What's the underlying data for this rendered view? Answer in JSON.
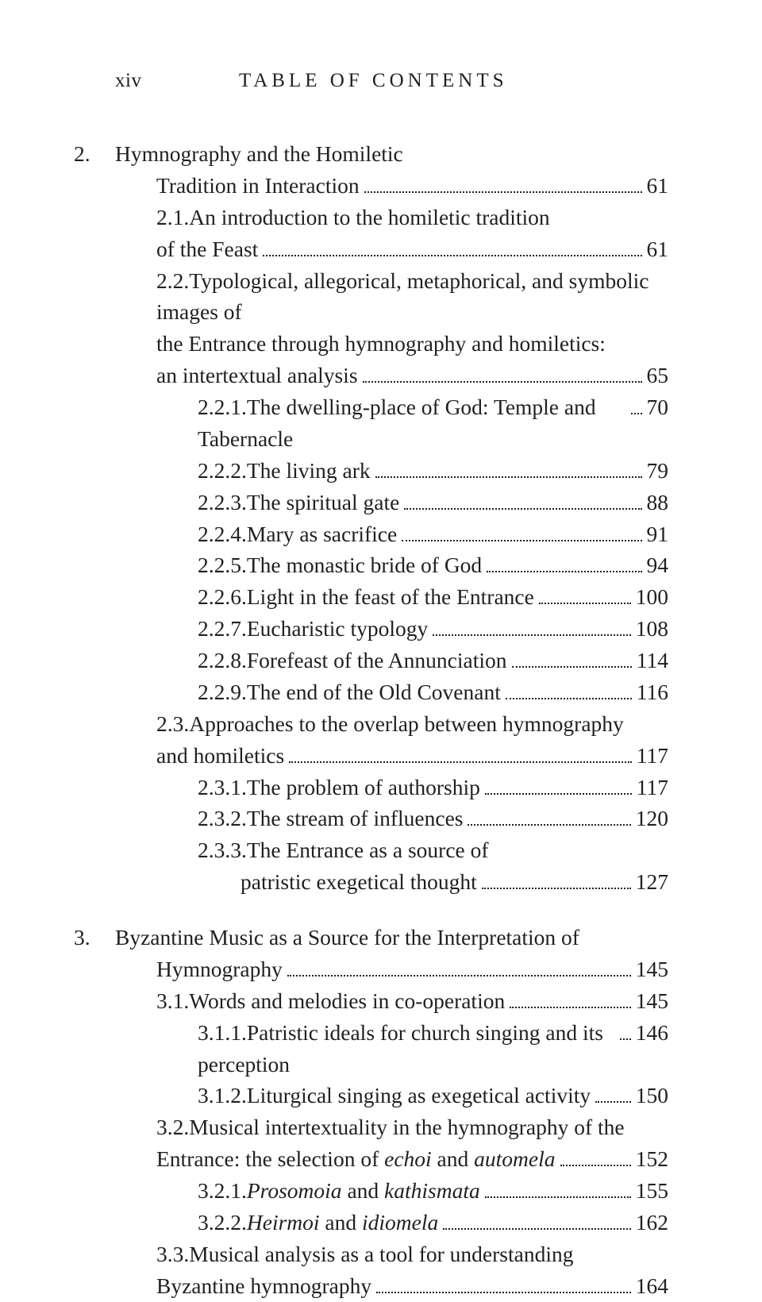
{
  "header": {
    "page_number": "xiv",
    "running_title": "TABLE OF CONTENTS"
  },
  "entries": [
    {
      "level": 1,
      "num": "2.",
      "text": "Hymnography and the Homiletic",
      "wrap": "Tradition in Interaction",
      "page": "61"
    },
    {
      "level": 2,
      "num": "2.1.",
      "text": "An introduction to the homiletic tradition",
      "wrap": "of the Feast",
      "page": "61"
    },
    {
      "level": 2,
      "num": "2.2.",
      "text": "Typological, allegorical, metaphorical, and symbolic images of",
      "wrap": "the Entrance through hymnography and homiletics:",
      "wrap2": "an intertextual analysis",
      "page": "65"
    },
    {
      "level": 3,
      "num": "2.2.1.",
      "text": "The dwelling-place of God: Temple and Tabernacle",
      "page": "70"
    },
    {
      "level": 3,
      "num": "2.2.2.",
      "text": "The living ark",
      "page": "79"
    },
    {
      "level": 3,
      "num": "2.2.3.",
      "text": "The spiritual gate",
      "page": "88"
    },
    {
      "level": 3,
      "num": "2.2.4.",
      "text": "Mary as sacrifice",
      "page": "91"
    },
    {
      "level": 3,
      "num": "2.2.5.",
      "text": "The monastic bride of God",
      "page": "94"
    },
    {
      "level": 3,
      "num": "2.2.6.",
      "text": "Light in the feast of the Entrance",
      "page": "100"
    },
    {
      "level": 3,
      "num": "2.2.7.",
      "text": "Eucharistic typology",
      "page": "108"
    },
    {
      "level": 3,
      "num": "2.2.8.",
      "text": "Forefeast of the Annunciation",
      "page": "114"
    },
    {
      "level": 3,
      "num": "2.2.9.",
      "text": "The end of the Old Covenant",
      "page": "116"
    },
    {
      "level": 2,
      "num": "2.3.",
      "text": "Approaches to the overlap between hymnography",
      "wrap": "and homiletics",
      "page": "117"
    },
    {
      "level": 3,
      "num": "2.3.1.",
      "text": "The problem of authorship",
      "page": "117"
    },
    {
      "level": 3,
      "num": "2.3.2.",
      "text": "The stream of influences",
      "page": "120"
    },
    {
      "level": 3,
      "num": "2.3.3.",
      "text": "The Entrance as a source of",
      "wrap": "patristic exegetical thought",
      "page": "127"
    },
    {
      "gap": true
    },
    {
      "level": 1,
      "num": "3.",
      "text": "Byzantine Music as a Source for the Interpretation of",
      "wrap": "Hymnography",
      "wrap_at_level": 1,
      "page": "145"
    },
    {
      "level": 2,
      "num": "3.1.",
      "text": "Words and melodies in co-operation",
      "page": "145"
    },
    {
      "level": 3,
      "num": "3.1.1.",
      "text": "Patristic ideals for church singing and its perception",
      "page": "146"
    },
    {
      "level": 3,
      "num": "3.1.2.",
      "text": "Liturgical singing as exegetical activity",
      "page": "150"
    },
    {
      "level": 2,
      "num": "3.2.",
      "text": "Musical intertextuality in the hymnography of the",
      "wrap_html": "Entrance: the selection of <em>echoi</em> and <em>automela</em>",
      "page": "152"
    },
    {
      "level": 3,
      "num": "3.2.1.",
      "text_html": "<em>Prosomoia</em> and <em>kathismata</em>",
      "page": "155"
    },
    {
      "level": 3,
      "num": "3.2.2.",
      "text_html": "<em>Heirmoi</em> and <em>idiomela</em>",
      "page": "162"
    },
    {
      "level": 2,
      "num": "3.3.",
      "text": "Musical analysis as a tool for understanding",
      "wrap": "Byzantine hymnography",
      "page": "164"
    }
  ]
}
